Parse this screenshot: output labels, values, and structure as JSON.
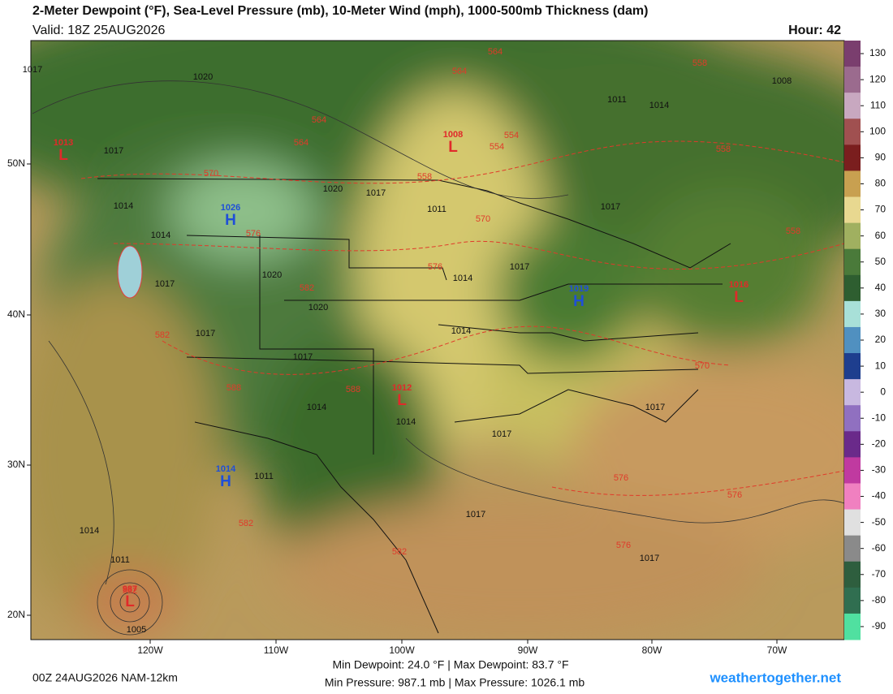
{
  "header": {
    "title": "2-Meter Dewpoint (°F), Sea-Level Pressure (mb), 10-Meter Wind (mph), 1000-500mb Thickness (dam)",
    "valid": "Valid: 18Z 25AUG2026",
    "hour": "Hour: 42"
  },
  "colorbar": {
    "ticks": [
      130,
      120,
      110,
      100,
      90,
      80,
      70,
      60,
      50,
      40,
      30,
      20,
      10,
      0,
      -10,
      -20,
      -30,
      -40,
      -50,
      -60,
      -70,
      -80,
      -90
    ],
    "colors": [
      "#7a3e6e",
      "#9b6b8e",
      "#c8a8c0",
      "#a05050",
      "#7a1e1e",
      "#c8a050",
      "#e8d890",
      "#a0b060",
      "#4a7a3a",
      "#2e5e30",
      "#a8e0d8",
      "#5090c0",
      "#1e3e8e",
      "#c8b8e0",
      "#9070c0",
      "#6a2a8a",
      "#c03aa0",
      "#f080c0",
      "#e0e0e0",
      "#8a8a8a",
      "#2e5e3e",
      "#306e50",
      "#50e0a0"
    ]
  },
  "axes": {
    "lat": [
      "50N",
      "40N",
      "30N",
      "20N"
    ],
    "lon": [
      "120W",
      "110W",
      "100W",
      "90W",
      "80W",
      "70W"
    ]
  },
  "centers": [
    {
      "letter": "L",
      "value": 1013
    },
    {
      "letter": "H",
      "value": 1026
    },
    {
      "letter": "L",
      "value": 1008
    },
    {
      "letter": "H",
      "value": 1019
    },
    {
      "letter": "L",
      "value": 1016
    },
    {
      "letter": "L",
      "value": 1012
    },
    {
      "letter": "H",
      "value": 1014
    },
    {
      "letter": "L",
      "value": 987
    }
  ],
  "isobar_labels": [
    1017,
    1020,
    1017,
    1014,
    1014,
    1017,
    1017,
    1020,
    1020,
    1017,
    1014,
    1014,
    1014,
    1011,
    1017,
    1017,
    1017,
    1017,
    1017,
    1017,
    1014,
    1011,
    1005,
    1008,
    1011,
    1014,
    1011,
    1014,
    1020,
    1017
  ],
  "thickness_labels": [
    564,
    564,
    564,
    564,
    570,
    576,
    582,
    582,
    582,
    588,
    588,
    570,
    576,
    558,
    554,
    554,
    558,
    558,
    558,
    570,
    576,
    576,
    576,
    582,
    582
  ],
  "footer": {
    "run": "00Z 24AUG2026 NAM-12km",
    "dewpoint": "Min Dewpoint:  24.0 °F | Max Dewpoint:  83.7 °F",
    "pressure": "Min Pressure: 987.1 mb | Max Pressure: 1026.1 mb",
    "site": "weathertogether.net"
  }
}
